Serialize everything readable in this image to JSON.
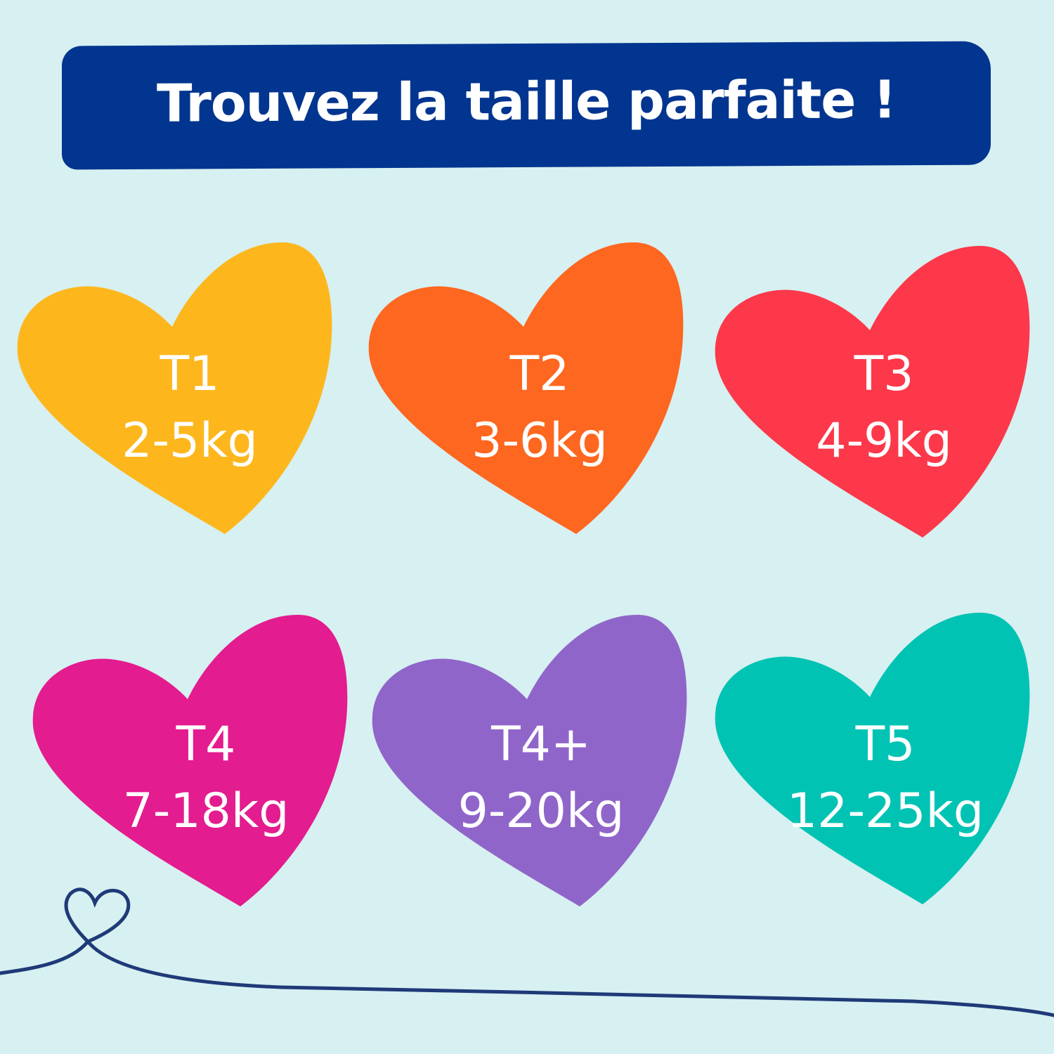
{
  "title": "Trouvez la taille parfaite !",
  "colors": {
    "background": "#d7f0f1",
    "banner": "#02358f",
    "line": "#1f3a78"
  },
  "sizes": [
    {
      "size": "T1",
      "weight": "2-5kg",
      "color": "#fdb71d"
    },
    {
      "size": "T2",
      "weight": "3-6kg",
      "color": "#fd6720"
    },
    {
      "size": "T3",
      "weight": "4-9kg",
      "color": "#fc384a"
    },
    {
      "size": "T4",
      "weight": "7-18kg",
      "color": "#e31c8f"
    },
    {
      "size": "T4+",
      "weight": "9-20kg",
      "color": "#9065c9"
    },
    {
      "size": "T5",
      "weight": "12-25kg",
      "color": "#00c3b4"
    }
  ]
}
